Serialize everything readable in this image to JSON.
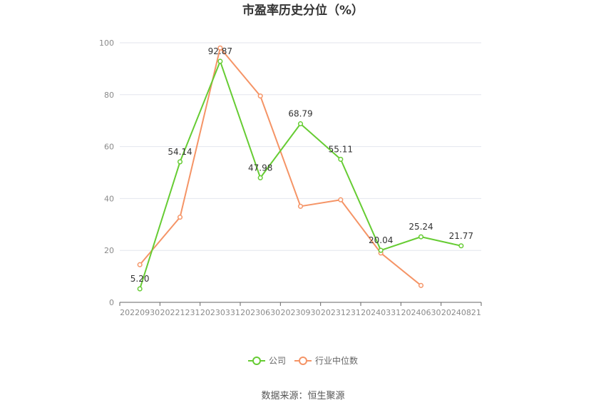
{
  "chart_data": {
    "type": "line",
    "title": "市盈率历史分位（%）",
    "x": [
      "20220930",
      "20221231",
      "20230331",
      "20230630",
      "20230930",
      "20231231",
      "20240331",
      "20240630",
      "20240821"
    ],
    "ylim": [
      0,
      100
    ],
    "yticks": [
      0,
      20,
      40,
      60,
      80,
      100
    ],
    "grid": true,
    "legend_position": "bottom",
    "series": [
      {
        "name": "公司",
        "color": "#66cc33",
        "values": [
          5.2,
          54.14,
          92.87,
          47.98,
          68.79,
          55.11,
          20.04,
          25.24,
          21.77
        ],
        "labels": [
          "5.20",
          "54.14",
          "92.87",
          "47.98",
          "68.79",
          "55.11",
          "20.04",
          "25.24",
          "21.77"
        ]
      },
      {
        "name": "行业中位数",
        "color": "#f59466",
        "values": [
          14.5,
          32.8,
          98.0,
          79.5,
          37.0,
          39.5,
          19.0,
          6.5,
          null
        ]
      }
    ]
  },
  "source": "数据来源：恒生聚源"
}
